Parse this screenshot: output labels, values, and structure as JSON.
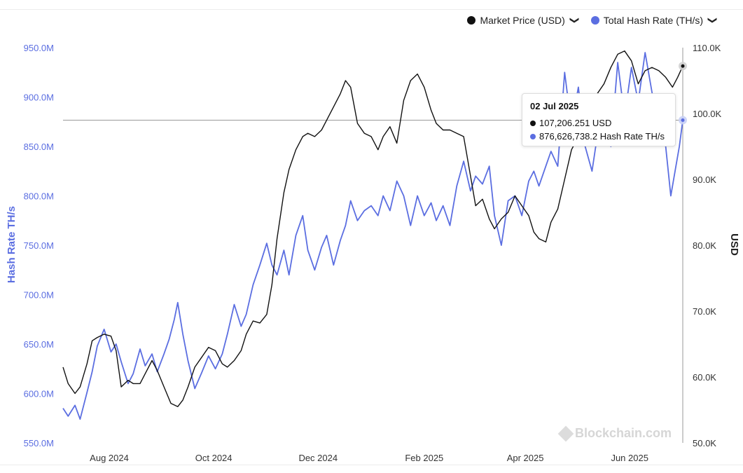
{
  "legend": {
    "price_label": "Market Price (USD)",
    "hash_label": "Total Hash Rate (TH/s)",
    "chevron": "❯"
  },
  "colors": {
    "price": "#111111",
    "hash": "#5b6ee1",
    "crosshair": "#9a9a9a"
  },
  "tooltip": {
    "date": "02 Jul 2025",
    "price_text": "107,206.251 USD",
    "hash_text": "876,626,738.2 Hash Rate TH/s"
  },
  "watermark": "Blockchain.com",
  "chart_data": {
    "type": "line",
    "left_axis": {
      "label": "Hash Rate TH/s",
      "ticks": [
        "550.0M",
        "600.0M",
        "650.0M",
        "700.0M",
        "750.0M",
        "800.0M",
        "850.0M",
        "900.0M",
        "950.0M"
      ],
      "range": [
        550000000,
        950000000
      ]
    },
    "right_axis": {
      "label": "USD",
      "ticks": [
        "50.0K",
        "60.0K",
        "70.0K",
        "80.0K",
        "90.0K",
        "100.0K",
        "110.0K"
      ],
      "range": [
        50000,
        110000
      ]
    },
    "x_axis": {
      "ticks": [
        "Aug 2024",
        "Oct 2024",
        "Dec 2024",
        "Feb 2025",
        "Apr 2025",
        "Jun 2025"
      ],
      "tick_dates": [
        "2024-08-01",
        "2024-10-01",
        "2024-12-01",
        "2025-02-01",
        "2025-04-01",
        "2025-06-01"
      ],
      "range": [
        "2024-07-05",
        "2025-07-02"
      ]
    },
    "series": [
      {
        "name": "Market Price (USD)",
        "axis": "right",
        "points": [
          [
            "2024-07-05",
            61500
          ],
          [
            "2024-07-08",
            59000
          ],
          [
            "2024-07-12",
            57500
          ],
          [
            "2024-07-15",
            58500
          ],
          [
            "2024-07-19",
            62000
          ],
          [
            "2024-07-22",
            65500
          ],
          [
            "2024-07-25",
            66000
          ],
          [
            "2024-07-29",
            66500
          ],
          [
            "2024-08-02",
            66200
          ],
          [
            "2024-08-05",
            64000
          ],
          [
            "2024-08-08",
            58500
          ],
          [
            "2024-08-12",
            59500
          ],
          [
            "2024-08-15",
            59000
          ],
          [
            "2024-08-19",
            59000
          ],
          [
            "2024-08-22",
            60500
          ],
          [
            "2024-08-26",
            62500
          ],
          [
            "2024-08-29",
            61000
          ],
          [
            "2024-09-02",
            58500
          ],
          [
            "2024-09-06",
            56000
          ],
          [
            "2024-09-10",
            55500
          ],
          [
            "2024-09-13",
            56500
          ],
          [
            "2024-09-16",
            58500
          ],
          [
            "2024-09-20",
            61500
          ],
          [
            "2024-09-24",
            63000
          ],
          [
            "2024-09-28",
            64500
          ],
          [
            "2024-10-02",
            64000
          ],
          [
            "2024-10-06",
            62000
          ],
          [
            "2024-10-09",
            61500
          ],
          [
            "2024-10-13",
            62500
          ],
          [
            "2024-10-17",
            64000
          ],
          [
            "2024-10-20",
            66500
          ],
          [
            "2024-10-24",
            68500
          ],
          [
            "2024-10-28",
            68200
          ],
          [
            "2024-11-01",
            69500
          ],
          [
            "2024-11-04",
            74000
          ],
          [
            "2024-11-07",
            81000
          ],
          [
            "2024-11-11",
            88000
          ],
          [
            "2024-11-14",
            91500
          ],
          [
            "2024-11-18",
            94500
          ],
          [
            "2024-11-22",
            96500
          ],
          [
            "2024-11-25",
            97000
          ],
          [
            "2024-11-29",
            96500
          ],
          [
            "2024-12-03",
            97500
          ],
          [
            "2024-12-06",
            99000
          ],
          [
            "2024-12-10",
            101000
          ],
          [
            "2024-12-14",
            103000
          ],
          [
            "2024-12-17",
            105000
          ],
          [
            "2024-12-20",
            104000
          ],
          [
            "2024-12-24",
            98500
          ],
          [
            "2024-12-28",
            97000
          ],
          [
            "2025-01-01",
            96500
          ],
          [
            "2025-01-05",
            94500
          ],
          [
            "2025-01-08",
            96500
          ],
          [
            "2025-01-12",
            98000
          ],
          [
            "2025-01-16",
            95500
          ],
          [
            "2025-01-20",
            102000
          ],
          [
            "2025-01-24",
            105000
          ],
          [
            "2025-01-28",
            106000
          ],
          [
            "2025-02-01",
            104000
          ],
          [
            "2025-02-05",
            100500
          ],
          [
            "2025-02-08",
            98500
          ],
          [
            "2025-02-12",
            97500
          ],
          [
            "2025-02-16",
            97500
          ],
          [
            "2025-02-20",
            97000
          ],
          [
            "2025-02-24",
            96500
          ],
          [
            "2025-02-28",
            90500
          ],
          [
            "2025-03-03",
            86000
          ],
          [
            "2025-03-07",
            87000
          ],
          [
            "2025-03-11",
            84000
          ],
          [
            "2025-03-14",
            82500
          ],
          [
            "2025-03-18",
            84000
          ],
          [
            "2025-03-22",
            85000
          ],
          [
            "2025-03-26",
            87500
          ],
          [
            "2025-03-30",
            86000
          ],
          [
            "2025-04-03",
            84500
          ],
          [
            "2025-04-06",
            82000
          ],
          [
            "2025-04-09",
            81000
          ],
          [
            "2025-04-13",
            80500
          ],
          [
            "2025-04-16",
            83500
          ],
          [
            "2025-04-20",
            85500
          ],
          [
            "2025-04-24",
            90000
          ],
          [
            "2025-04-28",
            94500
          ],
          [
            "2025-05-02",
            96500
          ],
          [
            "2025-05-06",
            97500
          ],
          [
            "2025-05-10",
            99500
          ],
          [
            "2025-05-13",
            103000
          ],
          [
            "2025-05-17",
            104500
          ],
          [
            "2025-05-21",
            107000
          ],
          [
            "2025-05-25",
            109000
          ],
          [
            "2025-05-29",
            109500
          ],
          [
            "2025-06-02",
            108000
          ],
          [
            "2025-06-06",
            104500
          ],
          [
            "2025-06-10",
            106500
          ],
          [
            "2025-06-14",
            107000
          ],
          [
            "2025-06-18",
            106500
          ],
          [
            "2025-06-22",
            105500
          ],
          [
            "2025-06-26",
            104000
          ],
          [
            "2025-06-29",
            105500
          ],
          [
            "2025-07-02",
            107206
          ]
        ]
      },
      {
        "name": "Total Hash Rate (TH/s)",
        "axis": "left",
        "points": [
          [
            "2024-07-05",
            585000000
          ],
          [
            "2024-07-08",
            577000000
          ],
          [
            "2024-07-12",
            588000000
          ],
          [
            "2024-07-15",
            574000000
          ],
          [
            "2024-07-19",
            601000000
          ],
          [
            "2024-07-22",
            622000000
          ],
          [
            "2024-07-25",
            648000000
          ],
          [
            "2024-07-29",
            665000000
          ],
          [
            "2024-08-02",
            642000000
          ],
          [
            "2024-08-05",
            650000000
          ],
          [
            "2024-08-08",
            632000000
          ],
          [
            "2024-08-12",
            610000000
          ],
          [
            "2024-08-15",
            620000000
          ],
          [
            "2024-08-19",
            645000000
          ],
          [
            "2024-08-22",
            628000000
          ],
          [
            "2024-08-26",
            640000000
          ],
          [
            "2024-08-29",
            622000000
          ],
          [
            "2024-09-02",
            640000000
          ],
          [
            "2024-09-05",
            655000000
          ],
          [
            "2024-09-08",
            675000000
          ],
          [
            "2024-09-10",
            692000000
          ],
          [
            "2024-09-13",
            660000000
          ],
          [
            "2024-09-16",
            633000000
          ],
          [
            "2024-09-20",
            605000000
          ],
          [
            "2024-09-24",
            621000000
          ],
          [
            "2024-09-28",
            638000000
          ],
          [
            "2024-10-02",
            625000000
          ],
          [
            "2024-10-06",
            640000000
          ],
          [
            "2024-10-09",
            660000000
          ],
          [
            "2024-10-13",
            690000000
          ],
          [
            "2024-10-17",
            668000000
          ],
          [
            "2024-10-20",
            680000000
          ],
          [
            "2024-10-24",
            710000000
          ],
          [
            "2024-10-28",
            730000000
          ],
          [
            "2024-11-01",
            752000000
          ],
          [
            "2024-11-04",
            730000000
          ],
          [
            "2024-11-07",
            720000000
          ],
          [
            "2024-11-11",
            745000000
          ],
          [
            "2024-11-14",
            720000000
          ],
          [
            "2024-11-18",
            760000000
          ],
          [
            "2024-11-22",
            780000000
          ],
          [
            "2024-11-25",
            745000000
          ],
          [
            "2024-11-29",
            725000000
          ],
          [
            "2024-12-03",
            748000000
          ],
          [
            "2024-12-06",
            760000000
          ],
          [
            "2024-12-10",
            730000000
          ],
          [
            "2024-12-14",
            755000000
          ],
          [
            "2024-12-17",
            770000000
          ],
          [
            "2024-12-20",
            795000000
          ],
          [
            "2024-12-24",
            775000000
          ],
          [
            "2024-12-28",
            785000000
          ],
          [
            "2025-01-01",
            790000000
          ],
          [
            "2025-01-05",
            780000000
          ],
          [
            "2025-01-08",
            800000000
          ],
          [
            "2025-01-12",
            785000000
          ],
          [
            "2025-01-16",
            815000000
          ],
          [
            "2025-01-20",
            800000000
          ],
          [
            "2025-01-24",
            770000000
          ],
          [
            "2025-01-28",
            800000000
          ],
          [
            "2025-02-01",
            780000000
          ],
          [
            "2025-02-05",
            793000000
          ],
          [
            "2025-02-08",
            775000000
          ],
          [
            "2025-02-12",
            790000000
          ],
          [
            "2025-02-16",
            770000000
          ],
          [
            "2025-02-20",
            810000000
          ],
          [
            "2025-02-24",
            835000000
          ],
          [
            "2025-02-28",
            805000000
          ],
          [
            "2025-03-03",
            820000000
          ],
          [
            "2025-03-07",
            812000000
          ],
          [
            "2025-03-11",
            830000000
          ],
          [
            "2025-03-14",
            780000000
          ],
          [
            "2025-03-18",
            750000000
          ],
          [
            "2025-03-22",
            795000000
          ],
          [
            "2025-03-26",
            800000000
          ],
          [
            "2025-03-30",
            780000000
          ],
          [
            "2025-04-03",
            815000000
          ],
          [
            "2025-04-06",
            825000000
          ],
          [
            "2025-04-09",
            810000000
          ],
          [
            "2025-04-13",
            830000000
          ],
          [
            "2025-04-16",
            845000000
          ],
          [
            "2025-04-20",
            830000000
          ],
          [
            "2025-04-24",
            925000000
          ],
          [
            "2025-04-28",
            870000000
          ],
          [
            "2025-05-02",
            910000000
          ],
          [
            "2025-05-06",
            850000000
          ],
          [
            "2025-05-10",
            825000000
          ],
          [
            "2025-05-13",
            860000000
          ],
          [
            "2025-05-17",
            900000000
          ],
          [
            "2025-05-21",
            850000000
          ],
          [
            "2025-05-25",
            935000000
          ],
          [
            "2025-05-29",
            880000000
          ],
          [
            "2025-06-02",
            930000000
          ],
          [
            "2025-06-06",
            895000000
          ],
          [
            "2025-06-10",
            945000000
          ],
          [
            "2025-06-14",
            905000000
          ],
          [
            "2025-06-18",
            870000000
          ],
          [
            "2025-06-22",
            850000000
          ],
          [
            "2025-06-25",
            800000000
          ],
          [
            "2025-06-28",
            830000000
          ],
          [
            "2025-06-30",
            850000000
          ],
          [
            "2025-07-02",
            876626738
          ]
        ]
      }
    ],
    "grid": false,
    "legend_position": "top-right",
    "crosshair": {
      "date": "2025-07-02",
      "hash_value": 876626738,
      "price_value": 107206
    }
  }
}
